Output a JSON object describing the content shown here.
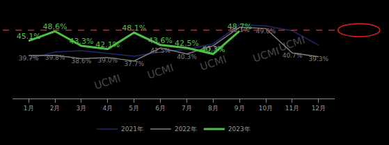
{
  "chart_data": {
    "type": "line",
    "categories": [
      "1月",
      "2月",
      "3月",
      "4月",
      "5月",
      "6月",
      "7月",
      "8月",
      "9月",
      "10月",
      "11月",
      "12月"
    ],
    "series": [
      {
        "name": "2021年",
        "color": "#1f2a6b",
        "data_labels": false,
        "values": [
          38.5,
          41.0,
          41.5,
          40.5,
          39.5,
          41.0,
          42.0,
          44.0,
          51.0,
          50.5,
          48.8,
          43.5
        ]
      },
      {
        "name": "2022年",
        "color": "#7f7f7f",
        "data_labels": true,
        "values": [
          39.7,
          39.8,
          38.6,
          39.0,
          37.7,
          42.5,
          40.3,
          43.3,
          50.1,
          49.6,
          40.7,
          39.3
        ],
        "value_labels": [
          "39.7%",
          "39.8%",
          "38.6%",
          "39.0%",
          "37.7%",
          "42.5%",
          "40.3%",
          "43.3%",
          "50.1%",
          "49.6%",
          "40.7%",
          "39.3%"
        ]
      },
      {
        "name": "2023年",
        "color": "#4dc247",
        "data_labels": true,
        "values": [
          45.1,
          48.6,
          43.3,
          42.1,
          48.1,
          43.6,
          42.5,
          40.3,
          48.7,
          null,
          null,
          null
        ],
        "value_labels": [
          "45.1%",
          "48.6%",
          "43.3%",
          "42.1%",
          "48.1%",
          "43.6%",
          "42.5%",
          "40.3%",
          "48.7%",
          null,
          null,
          null
        ]
      }
    ],
    "hline": {
      "value": 49,
      "color": "#e02020",
      "line_style": "dash"
    },
    "annotations": [
      {
        "text": "UCMI",
        "x": 3,
        "y": 30
      },
      {
        "text": "UCMI",
        "x": 5,
        "y": 34
      },
      {
        "text": "UCMI",
        "x": 7,
        "y": 37
      },
      {
        "text": "UCMI",
        "x": 9,
        "y": 40
      },
      {
        "text": "UCMI",
        "x": 10,
        "y": 44
      }
    ],
    "ylim": [
      24,
      58
    ],
    "tick_labels": "x",
    "grid": false,
    "legend": "bottom"
  }
}
